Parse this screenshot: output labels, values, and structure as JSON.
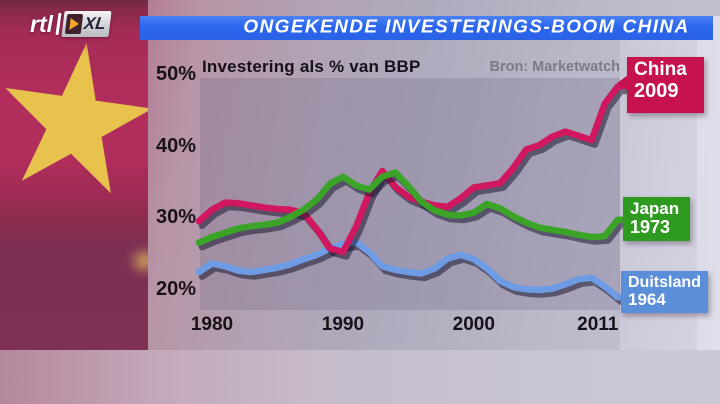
{
  "broadcast": {
    "logo": {
      "rtl": "rtl",
      "xl": "XL",
      "play_icon": "play-triangle"
    },
    "headline": "ONGEKENDE INVESTERINGS-BOOM CHINA",
    "banner_color": "#2b66ee"
  },
  "chart": {
    "title": "Investering als % van BBP",
    "source": "Bron: Marketwatch",
    "y_tick_labels": [
      "50%",
      "40%",
      "30%",
      "20%"
    ],
    "x_tick_labels": [
      "1980",
      "1990",
      "2000",
      "2011"
    ],
    "series_labels": [
      {
        "name": "China",
        "year": "2009",
        "box_color": "#c6134e"
      },
      {
        "name": "Japan",
        "year": "1973",
        "box_color": "#2f9a20"
      },
      {
        "name": "Duitsland",
        "year": "1964",
        "box_color": "#5b8ed8"
      }
    ]
  },
  "chart_data": {
    "type": "line",
    "title": "Investering als % van BBP",
    "source": "Bron: Marketwatch",
    "ylabel": "Investering als % van BBP",
    "grid": false,
    "legend_position": "right",
    "yticks": [
      50,
      40,
      30,
      20
    ],
    "ytick_labels": [
      "50%",
      "40%",
      "30%",
      "20%"
    ],
    "xticks": [
      1980,
      1990,
      2000,
      2011
    ],
    "ylim": [
      17,
      52
    ],
    "xlim": [
      1979,
      2011
    ],
    "x": [
      1979,
      1980,
      1981,
      1982,
      1983,
      1984,
      1985,
      1986,
      1987,
      1988,
      1989,
      1990,
      1991,
      1992,
      1993,
      1994,
      1995,
      1996,
      1997,
      1998,
      1999,
      2000,
      2001,
      2002,
      2003,
      2004,
      2005,
      2006,
      2007,
      2008,
      2009,
      2010,
      2011
    ],
    "series": [
      {
        "name": "China",
        "callout_year": "2009",
        "color": "#d0175f",
        "label_color": "#c6134e",
        "values": [
          29.6,
          31.2,
          32.2,
          32.1,
          31.8,
          31.5,
          31.3,
          31.2,
          30.7,
          28.5,
          25.8,
          25.3,
          28.8,
          33.5,
          36.6,
          34.4,
          33.0,
          32.3,
          31.8,
          31.6,
          32.8,
          34.3,
          34.6,
          34.9,
          37.0,
          39.6,
          40.2,
          41.4,
          42.1,
          41.5,
          40.9,
          46.0,
          48.4
        ]
      },
      {
        "name": "Japan",
        "callout_year": "1973",
        "color": "#3ba428",
        "label_color": "#2f9a20",
        "values": [
          26.6,
          27.4,
          28.0,
          28.6,
          28.9,
          29.1,
          29.4,
          30.2,
          31.2,
          32.6,
          34.8,
          35.8,
          34.6,
          34.0,
          35.8,
          36.4,
          34.5,
          32.3,
          31.1,
          30.5,
          30.4,
          30.8,
          32.0,
          31.4,
          30.3,
          29.4,
          28.7,
          28.4,
          28.1,
          27.7,
          27.4,
          27.5,
          29.8
        ]
      },
      {
        "name": "Duitsland",
        "callout_year": "1964",
        "color": "#6d9be4",
        "label_color": "#5b8ed8",
        "values": [
          22.5,
          23.7,
          23.3,
          22.7,
          22.5,
          22.8,
          23.1,
          23.6,
          24.3,
          24.9,
          25.8,
          26.4,
          26.7,
          25.3,
          23.3,
          22.8,
          22.5,
          22.3,
          23.0,
          24.4,
          24.9,
          24.3,
          23.0,
          21.3,
          20.4,
          20.1,
          20.0,
          20.2,
          20.8,
          21.5,
          21.7,
          20.5,
          19.0
        ]
      }
    ]
  }
}
